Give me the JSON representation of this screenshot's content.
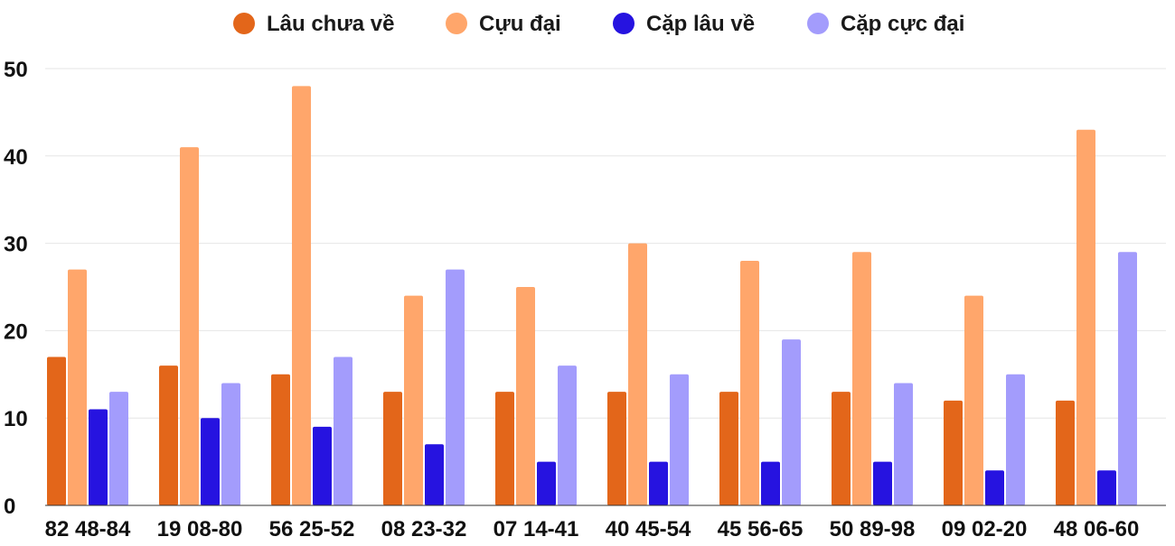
{
  "chart_data": {
    "type": "bar",
    "categories": [
      "82 48-84",
      "19 08-80",
      "56 25-52",
      "08 23-32",
      "07 14-41",
      "40 45-54",
      "45 56-65",
      "50 89-98",
      "09 02-20",
      "48 06-60"
    ],
    "series": [
      {
        "name": "Lâu chưa về",
        "color": "#e3661a",
        "values": [
          17,
          16,
          15,
          13,
          13,
          13,
          13,
          13,
          12,
          12
        ]
      },
      {
        "name": "Cựu đại",
        "color": "#ffa66b",
        "values": [
          27,
          41,
          48,
          24,
          25,
          30,
          28,
          29,
          24,
          43
        ]
      },
      {
        "name": "Cặp lâu về",
        "color": "#2613e0",
        "values": [
          11,
          10,
          9,
          7,
          5,
          5,
          5,
          5,
          4,
          4
        ]
      },
      {
        "name": "Cặp cực đại",
        "color": "#a39cfc",
        "values": [
          13,
          14,
          17,
          27,
          16,
          15,
          19,
          14,
          15,
          29
        ]
      }
    ],
    "yticks": [
      0,
      10,
      20,
      30,
      40,
      50
    ],
    "ylim": [
      0,
      50
    ],
    "grid": true,
    "legend_position": "top-center",
    "gridline_color": "#e6e6e6",
    "axis_line_color": "#333333"
  }
}
